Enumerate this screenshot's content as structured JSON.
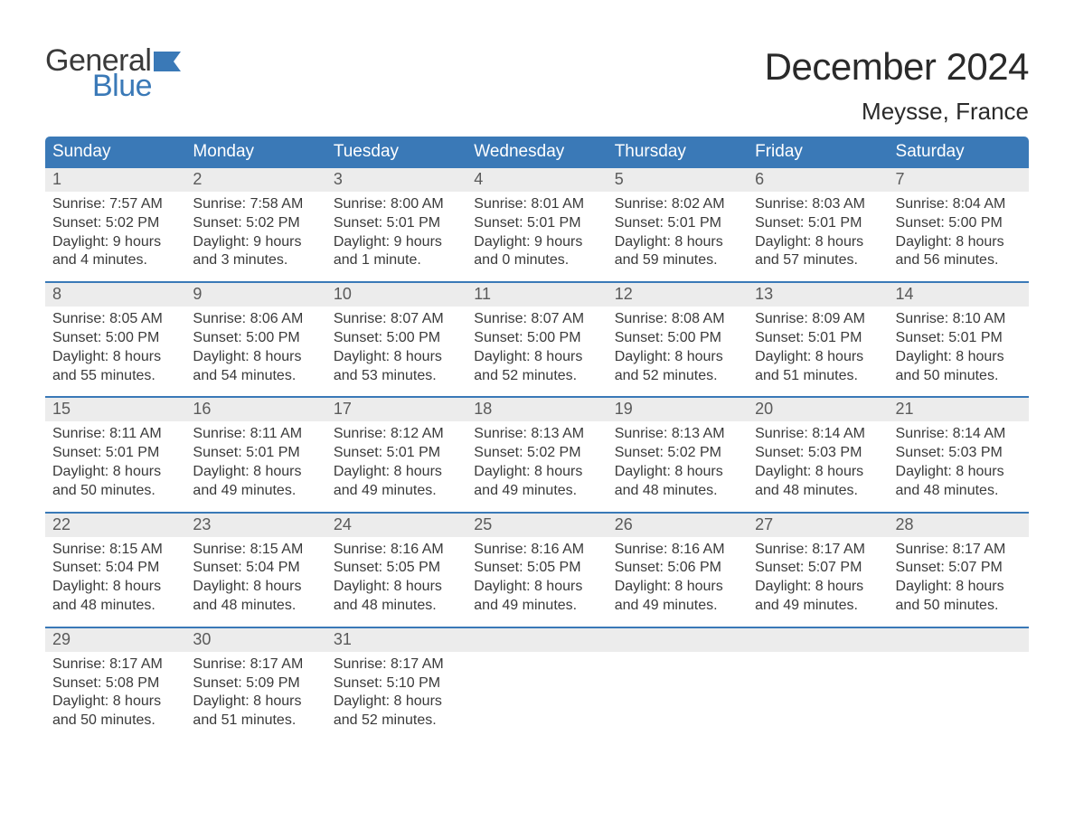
{
  "brand": {
    "line1": "General",
    "line2": "Blue"
  },
  "title": "December 2024",
  "location": "Meysse, France",
  "colors": {
    "header_bg": "#3a79b7",
    "header_text": "#ffffff",
    "daynum_bg": "#ececec",
    "week_border": "#3a79b7",
    "body_text": "#3a3a3a",
    "brand_blue": "#3a79b7"
  },
  "weekdays": [
    "Sunday",
    "Monday",
    "Tuesday",
    "Wednesday",
    "Thursday",
    "Friday",
    "Saturday"
  ],
  "weeks": [
    [
      {
        "n": "1",
        "sr": "Sunrise: 7:57 AM",
        "ss": "Sunset: 5:02 PM",
        "d1": "Daylight: 9 hours",
        "d2": "and 4 minutes."
      },
      {
        "n": "2",
        "sr": "Sunrise: 7:58 AM",
        "ss": "Sunset: 5:02 PM",
        "d1": "Daylight: 9 hours",
        "d2": "and 3 minutes."
      },
      {
        "n": "3",
        "sr": "Sunrise: 8:00 AM",
        "ss": "Sunset: 5:01 PM",
        "d1": "Daylight: 9 hours",
        "d2": "and 1 minute."
      },
      {
        "n": "4",
        "sr": "Sunrise: 8:01 AM",
        "ss": "Sunset: 5:01 PM",
        "d1": "Daylight: 9 hours",
        "d2": "and 0 minutes."
      },
      {
        "n": "5",
        "sr": "Sunrise: 8:02 AM",
        "ss": "Sunset: 5:01 PM",
        "d1": "Daylight: 8 hours",
        "d2": "and 59 minutes."
      },
      {
        "n": "6",
        "sr": "Sunrise: 8:03 AM",
        "ss": "Sunset: 5:01 PM",
        "d1": "Daylight: 8 hours",
        "d2": "and 57 minutes."
      },
      {
        "n": "7",
        "sr": "Sunrise: 8:04 AM",
        "ss": "Sunset: 5:00 PM",
        "d1": "Daylight: 8 hours",
        "d2": "and 56 minutes."
      }
    ],
    [
      {
        "n": "8",
        "sr": "Sunrise: 8:05 AM",
        "ss": "Sunset: 5:00 PM",
        "d1": "Daylight: 8 hours",
        "d2": "and 55 minutes."
      },
      {
        "n": "9",
        "sr": "Sunrise: 8:06 AM",
        "ss": "Sunset: 5:00 PM",
        "d1": "Daylight: 8 hours",
        "d2": "and 54 minutes."
      },
      {
        "n": "10",
        "sr": "Sunrise: 8:07 AM",
        "ss": "Sunset: 5:00 PM",
        "d1": "Daylight: 8 hours",
        "d2": "and 53 minutes."
      },
      {
        "n": "11",
        "sr": "Sunrise: 8:07 AM",
        "ss": "Sunset: 5:00 PM",
        "d1": "Daylight: 8 hours",
        "d2": "and 52 minutes."
      },
      {
        "n": "12",
        "sr": "Sunrise: 8:08 AM",
        "ss": "Sunset: 5:00 PM",
        "d1": "Daylight: 8 hours",
        "d2": "and 52 minutes."
      },
      {
        "n": "13",
        "sr": "Sunrise: 8:09 AM",
        "ss": "Sunset: 5:01 PM",
        "d1": "Daylight: 8 hours",
        "d2": "and 51 minutes."
      },
      {
        "n": "14",
        "sr": "Sunrise: 8:10 AM",
        "ss": "Sunset: 5:01 PM",
        "d1": "Daylight: 8 hours",
        "d2": "and 50 minutes."
      }
    ],
    [
      {
        "n": "15",
        "sr": "Sunrise: 8:11 AM",
        "ss": "Sunset: 5:01 PM",
        "d1": "Daylight: 8 hours",
        "d2": "and 50 minutes."
      },
      {
        "n": "16",
        "sr": "Sunrise: 8:11 AM",
        "ss": "Sunset: 5:01 PM",
        "d1": "Daylight: 8 hours",
        "d2": "and 49 minutes."
      },
      {
        "n": "17",
        "sr": "Sunrise: 8:12 AM",
        "ss": "Sunset: 5:01 PM",
        "d1": "Daylight: 8 hours",
        "d2": "and 49 minutes."
      },
      {
        "n": "18",
        "sr": "Sunrise: 8:13 AM",
        "ss": "Sunset: 5:02 PM",
        "d1": "Daylight: 8 hours",
        "d2": "and 49 minutes."
      },
      {
        "n": "19",
        "sr": "Sunrise: 8:13 AM",
        "ss": "Sunset: 5:02 PM",
        "d1": "Daylight: 8 hours",
        "d2": "and 48 minutes."
      },
      {
        "n": "20",
        "sr": "Sunrise: 8:14 AM",
        "ss": "Sunset: 5:03 PM",
        "d1": "Daylight: 8 hours",
        "d2": "and 48 minutes."
      },
      {
        "n": "21",
        "sr": "Sunrise: 8:14 AM",
        "ss": "Sunset: 5:03 PM",
        "d1": "Daylight: 8 hours",
        "d2": "and 48 minutes."
      }
    ],
    [
      {
        "n": "22",
        "sr": "Sunrise: 8:15 AM",
        "ss": "Sunset: 5:04 PM",
        "d1": "Daylight: 8 hours",
        "d2": "and 48 minutes."
      },
      {
        "n": "23",
        "sr": "Sunrise: 8:15 AM",
        "ss": "Sunset: 5:04 PM",
        "d1": "Daylight: 8 hours",
        "d2": "and 48 minutes."
      },
      {
        "n": "24",
        "sr": "Sunrise: 8:16 AM",
        "ss": "Sunset: 5:05 PM",
        "d1": "Daylight: 8 hours",
        "d2": "and 48 minutes."
      },
      {
        "n": "25",
        "sr": "Sunrise: 8:16 AM",
        "ss": "Sunset: 5:05 PM",
        "d1": "Daylight: 8 hours",
        "d2": "and 49 minutes."
      },
      {
        "n": "26",
        "sr": "Sunrise: 8:16 AM",
        "ss": "Sunset: 5:06 PM",
        "d1": "Daylight: 8 hours",
        "d2": "and 49 minutes."
      },
      {
        "n": "27",
        "sr": "Sunrise: 8:17 AM",
        "ss": "Sunset: 5:07 PM",
        "d1": "Daylight: 8 hours",
        "d2": "and 49 minutes."
      },
      {
        "n": "28",
        "sr": "Sunrise: 8:17 AM",
        "ss": "Sunset: 5:07 PM",
        "d1": "Daylight: 8 hours",
        "d2": "and 50 minutes."
      }
    ],
    [
      {
        "n": "29",
        "sr": "Sunrise: 8:17 AM",
        "ss": "Sunset: 5:08 PM",
        "d1": "Daylight: 8 hours",
        "d2": "and 50 minutes."
      },
      {
        "n": "30",
        "sr": "Sunrise: 8:17 AM",
        "ss": "Sunset: 5:09 PM",
        "d1": "Daylight: 8 hours",
        "d2": "and 51 minutes."
      },
      {
        "n": "31",
        "sr": "Sunrise: 8:17 AM",
        "ss": "Sunset: 5:10 PM",
        "d1": "Daylight: 8 hours",
        "d2": "and 52 minutes."
      },
      {
        "empty": true
      },
      {
        "empty": true
      },
      {
        "empty": true
      },
      {
        "empty": true
      }
    ]
  ]
}
